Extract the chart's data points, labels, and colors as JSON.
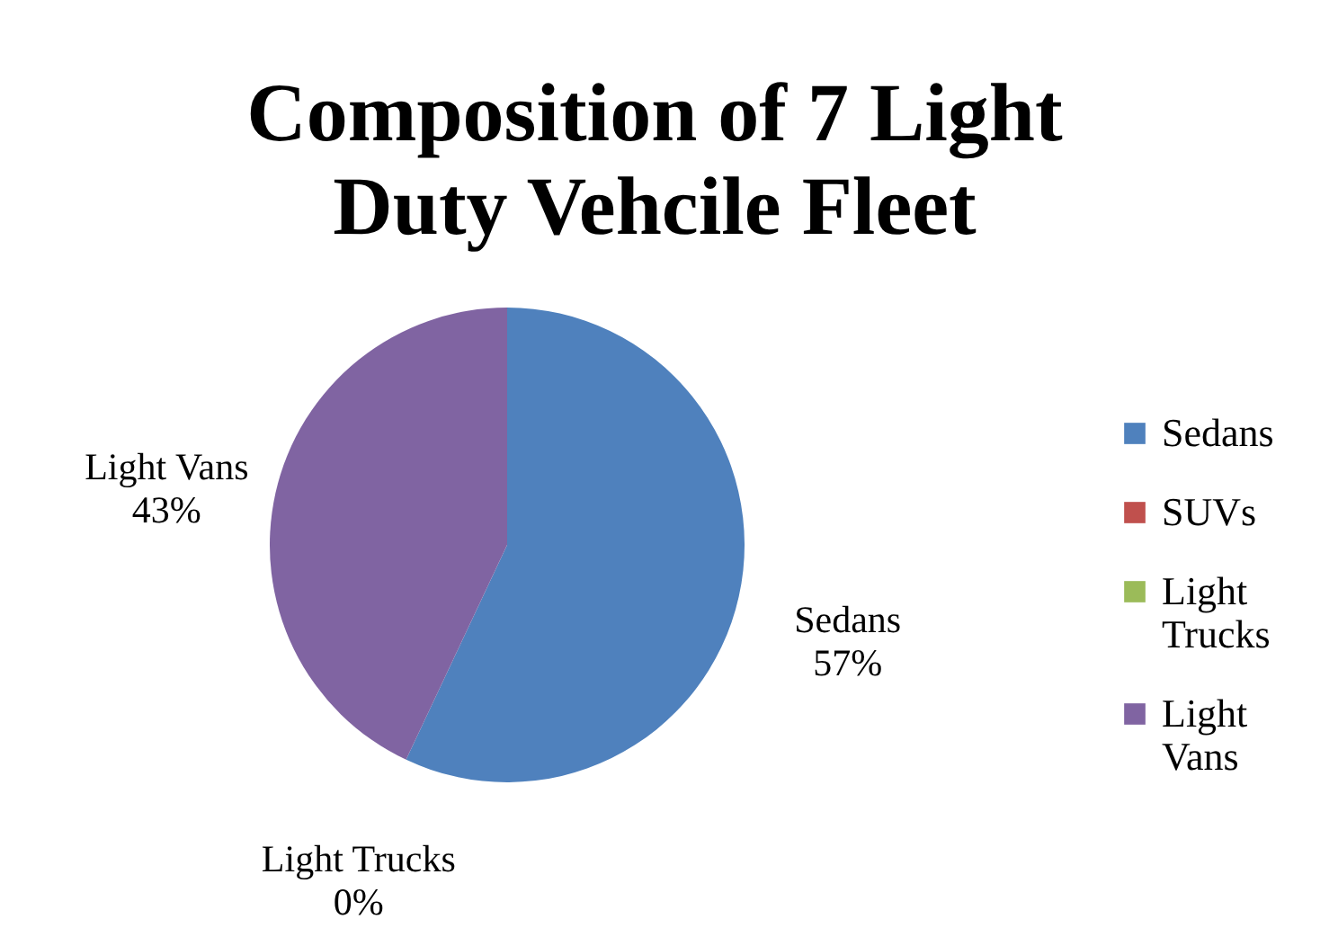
{
  "chart_data": {
    "type": "pie",
    "title": "Composition of 7 Light Duty Vehcile Fleet",
    "categories": [
      "Sedans",
      "SUVs",
      "Light Trucks",
      "Light Vans"
    ],
    "values": [
      57,
      0,
      0,
      43
    ],
    "colors": [
      "#4f81bd",
      "#c0504d",
      "#9bbb59",
      "#8064a2"
    ],
    "value_labels": [
      "57%",
      null,
      "0%",
      "43%"
    ],
    "legend": "right"
  }
}
